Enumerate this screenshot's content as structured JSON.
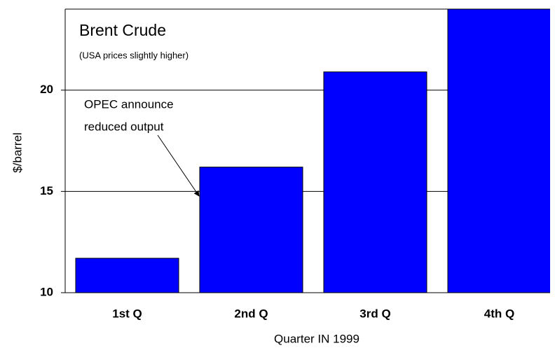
{
  "chart_data": {
    "type": "bar",
    "title": "Brent Crude",
    "subtitle": "(USA prices slightly higher)",
    "annotation": [
      "OPEC announce",
      "reduced output"
    ],
    "x_label": "Quarter IN 1999",
    "y_label": "$/barrel",
    "categories": [
      "1st Q",
      "2nd Q",
      "3rd Q",
      "4th Q"
    ],
    "values": [
      11.7,
      16.2,
      20.9,
      24
    ],
    "color": "#0000ff",
    "ylim": [
      10,
      24
    ],
    "yticks": [
      10,
      15,
      20
    ],
    "grid": true
  }
}
